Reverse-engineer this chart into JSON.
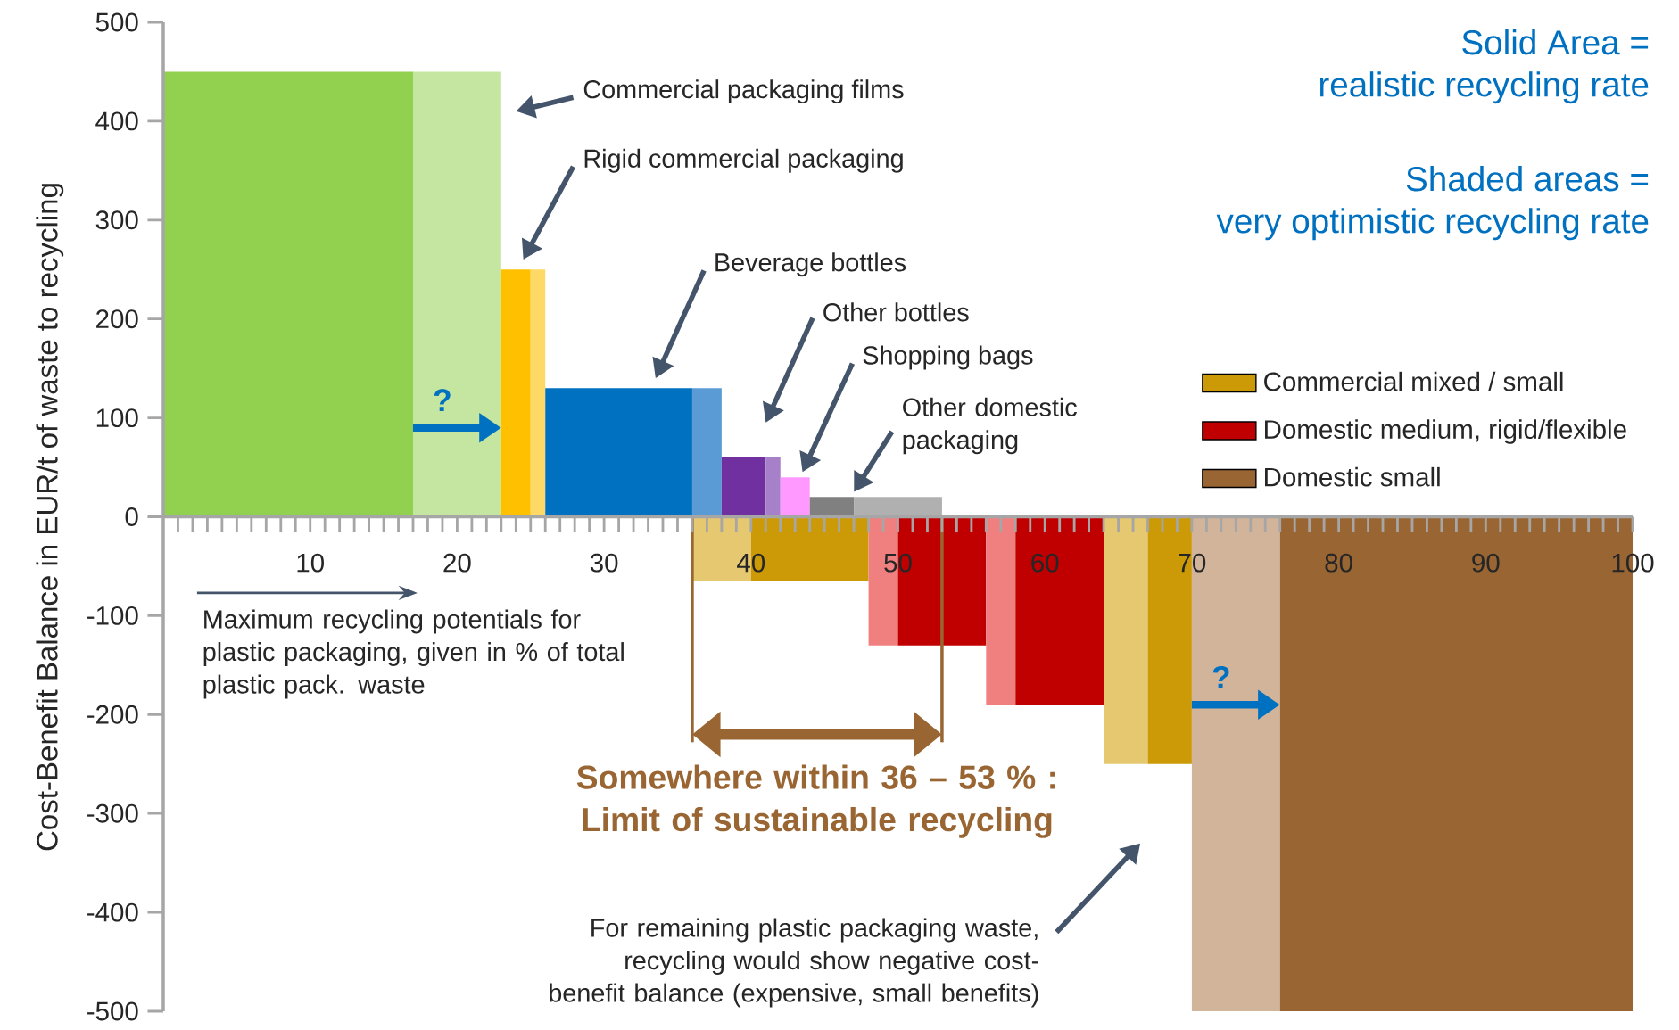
{
  "chart_data": {
    "type": "area",
    "ylabel": "Cost-Benefit Balance in EUR/t of waste to recycling",
    "xlim": [
      0,
      100
    ],
    "ylim": [
      -500,
      500
    ],
    "xticks": [
      10,
      20,
      30,
      40,
      50,
      60,
      70,
      80,
      90,
      100
    ],
    "yticks": [
      -500,
      -400,
      -300,
      -200,
      -100,
      0,
      100,
      200,
      300,
      400,
      500
    ],
    "legend": "right",
    "series": [
      {
        "x": [
          0,
          17
        ],
        "values": [
          450,
          450
        ],
        "color": "#92d050"
      },
      {
        "x": [
          17,
          23
        ],
        "values": [
          450,
          450
        ],
        "color": "#c4e6a0"
      },
      {
        "x": [
          23,
          25
        ],
        "values": [
          250,
          250
        ],
        "color": "#ffc000"
      },
      {
        "x": [
          25,
          26
        ],
        "values": [
          250,
          250
        ],
        "color": "#ffd966"
      },
      {
        "x": [
          26,
          36
        ],
        "values": [
          130,
          130
        ],
        "color": "#0070c0"
      },
      {
        "x": [
          36,
          38
        ],
        "values": [
          130,
          130
        ],
        "color": "#5b9bd5"
      },
      {
        "x": [
          38,
          41
        ],
        "values": [
          60,
          60
        ],
        "color": "#7030a0"
      },
      {
        "x": [
          41,
          42
        ],
        "values": [
          60,
          60
        ],
        "color": "#a680c8"
      },
      {
        "x": [
          42,
          44
        ],
        "values": [
          40,
          40
        ],
        "color": "#ff99ff"
      },
      {
        "x": [
          44,
          47
        ],
        "values": [
          20,
          20
        ],
        "color": "#808080"
      },
      {
        "x": [
          47,
          53
        ],
        "values": [
          20,
          20
        ],
        "color": "#b0b0b0"
      },
      {
        "x": [
          36,
          40
        ],
        "values": [
          -65,
          -65
        ],
        "color": "#e6c870"
      },
      {
        "name": "Commercial mixed / small",
        "x": [
          40,
          48
        ],
        "values": [
          -65,
          -65
        ],
        "color": "#cc9a06"
      },
      {
        "x": [
          48,
          50
        ],
        "values": [
          -130,
          -130
        ],
        "color": "#f08080"
      },
      {
        "name": "Domestic medium, rigid/flexible",
        "x": [
          50,
          56
        ],
        "values": [
          -130,
          -130
        ],
        "color": "#c00000"
      },
      {
        "x": [
          56,
          58
        ],
        "values": [
          -190,
          -190
        ],
        "color": "#f08080"
      },
      {
        "x": [
          58,
          64
        ],
        "values": [
          -190,
          -190
        ],
        "color": "#c00000"
      },
      {
        "x": [
          64,
          67
        ],
        "values": [
          -250,
          -250
        ],
        "color": "#e6c870"
      },
      {
        "x": [
          67,
          70
        ],
        "values": [
          -250,
          -250
        ],
        "color": "#cc9a06"
      },
      {
        "x": [
          70,
          76
        ],
        "values": [
          -500,
          -500
        ],
        "color": "#d2b49a"
      },
      {
        "name": "Domestic small",
        "x": [
          76,
          100
        ],
        "values": [
          -500,
          -500
        ],
        "color": "#996633"
      }
    ],
    "ref_lines": [
      {
        "axis": "x",
        "value": 36,
        "color": "#996633"
      },
      {
        "axis": "x",
        "value": 53,
        "color": "#996633"
      }
    ],
    "annotations": [
      "Commercial packaging films",
      "Rigid commercial packaging",
      "Beverage bottles",
      "Other bottles",
      "Shopping bags",
      "Other domestic packaging",
      {
        "text": "?",
        "x": 23,
        "y": 90
      },
      {
        "text": "?",
        "x": 76,
        "y": -190
      },
      "For remaining plastic packaging waste, recycling would show negative cost-benefit balance (expensive, small benefits)",
      "Maximum recycling potentials for plastic packaging, given in % of total plastic pack. waste",
      "Solid Area =",
      "realistic recycling rate",
      "Shaded areas =",
      "very optimistic recycling rate",
      "Somewhere within 36 – 53 % : Limit of sustainable recycling"
    ]
  }
}
